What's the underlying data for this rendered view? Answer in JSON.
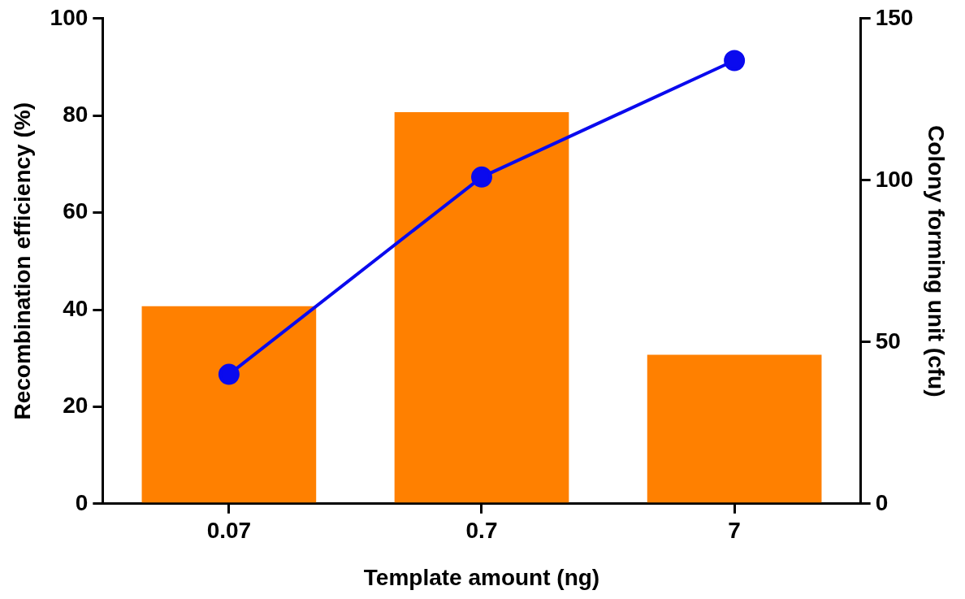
{
  "chart_data": {
    "type": "bar",
    "categories": [
      "0.07",
      "0.7",
      "7"
    ],
    "xlabel": "Template amount (ng)",
    "ylabel": "Recombination efficiency (%)",
    "y2label": "Colony forming unit (cfu)",
    "series": [
      {
        "color": "#ff8000",
        "values": [
          40.7,
          80.7,
          30.7
        ]
      },
      {
        "type": "line",
        "axis": "y2",
        "color": "#0a0aee",
        "values": [
          40,
          101,
          137
        ]
      }
    ],
    "ylim": [
      0,
      100
    ],
    "yticks": [
      0,
      20,
      40,
      60,
      80,
      100
    ],
    "y2lim": [
      0,
      150
    ],
    "y2ticks": [
      0,
      50,
      100,
      150
    ],
    "grid": false,
    "legend": false,
    "marker": "circle",
    "line_style": "solid"
  }
}
